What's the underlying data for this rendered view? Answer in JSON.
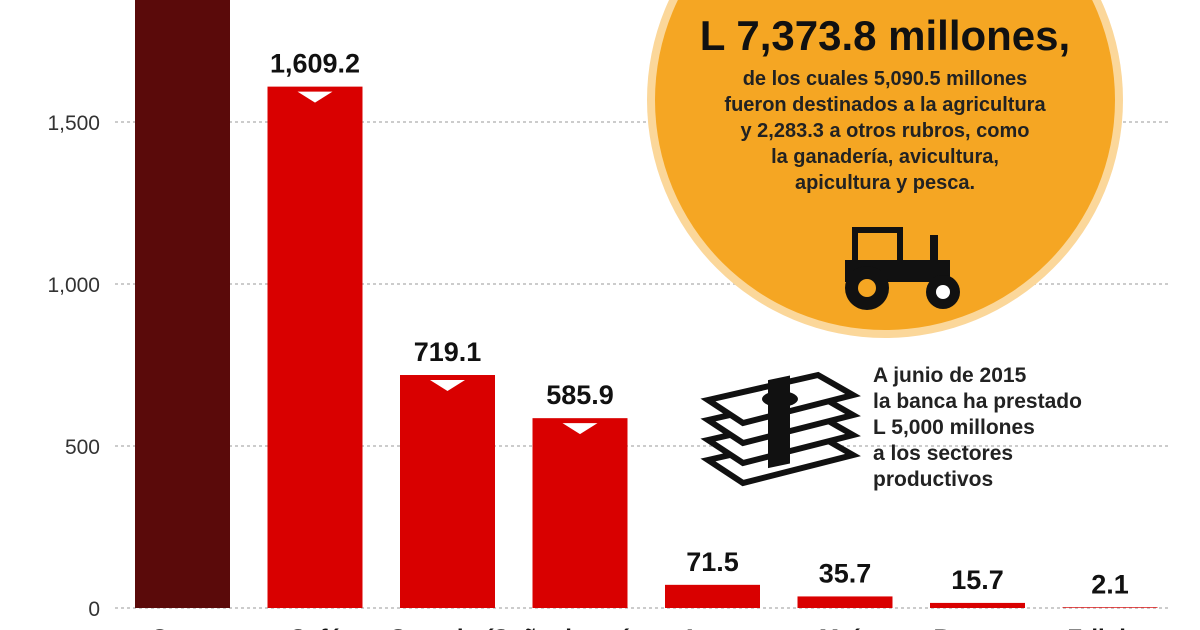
{
  "chart_data": {
    "type": "bar",
    "categories": [
      "Otros",
      "Café",
      "Ganadería",
      "Caña de azúcar",
      "Arroz",
      "Maíz",
      "Banano",
      "Frijoles"
    ],
    "values": [
      null,
      1609.2,
      719.1,
      585.9,
      71.5,
      35.7,
      15.7,
      2.1
    ],
    "value_labels": [
      "",
      "1,609.2",
      "719.1",
      "585.9",
      "71.5",
      "35.7",
      "15.7",
      "2.1"
    ],
    "yticks": [
      0,
      500,
      1000,
      1500
    ],
    "ytick_labels": [
      "0",
      "500",
      "1,000",
      "1,500"
    ],
    "ylim": [
      0,
      1850
    ],
    "grid": true,
    "colors": {
      "first": "#5a0a0a",
      "bars": "#d90000",
      "grid": "#cccccc"
    }
  },
  "callout": {
    "amount": "L 7,373.8 millones,",
    "lines": [
      "de los cuales 5,090.5 millones",
      "fueron destinados a la agricultura",
      "y 2,283.3 a otros rubros, como",
      "la ganadería, avicultura,",
      "apicultura y pesca."
    ],
    "icon": "tractor-icon"
  },
  "note": {
    "lines": [
      "A junio de 2015",
      "la banca ha prestado",
      "L 5,000 millones",
      "a los sectores",
      "productivos"
    ],
    "icon": "money-stack-icon"
  }
}
